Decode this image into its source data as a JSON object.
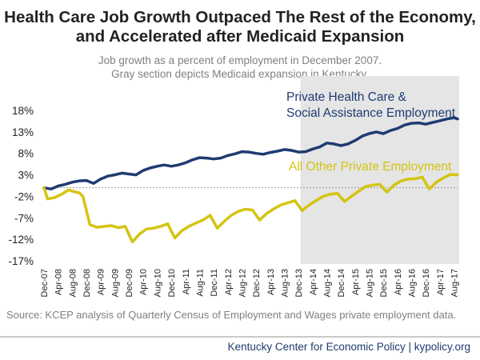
{
  "title": "Health Care Job Growth Outpaced The Rest of the Economy, and Accelerated after Medicaid Expansion",
  "subtitle_line1": "Job growth as a percent of employment in December 2007.",
  "subtitle_line2": "Gray section depicts Medicaid expansion in Kentucky.",
  "source": "Source: KCEP analysis of Quarterly Census of Employment and Wages private employment data.",
  "credit": "Kentucky Center for Economic Policy | kypolicy.org",
  "colors": {
    "health": "#1f3b72",
    "other": "#d4c411",
    "shade": "#e5e5e5",
    "zero_line": "#9a9a9a"
  },
  "chart_data": {
    "type": "line",
    "x_start": "Dec-07",
    "x_end": "Sep-17",
    "x_tick_labels": [
      "Dec-07",
      "Apr-08",
      "Aug-08",
      "Dec-08",
      "Apr-09",
      "Aug-09",
      "Dec-09",
      "Apr-10",
      "Aug-10",
      "Dec-10",
      "Apr-11",
      "Aug-11",
      "Dec-11",
      "Apr-12",
      "Aug-12",
      "Dec-12",
      "Apr-13",
      "Aug-13",
      "Dec-13",
      "Apr-14",
      "Aug-14",
      "Dec-14",
      "Apr-15",
      "Aug-15",
      "Dec-15",
      "Apr-16",
      "Aug-16",
      "Dec-16",
      "Apr-17",
      "Aug-17"
    ],
    "y_tick_labels": [
      "18%",
      "13%",
      "8%",
      "3%",
      "-2%",
      "-7%",
      "-12%",
      "-17%"
    ],
    "ylim": [
      -17,
      18
    ],
    "unit": "%",
    "reference_line": 0,
    "shaded_region": {
      "from": "Jan-14",
      "to": "Sep-17"
    },
    "series": [
      {
        "name_line1": "Private Health Care &",
        "name_line2": "Social Assistance Employment",
        "points": [
          [
            "Dec-07",
            0.0
          ],
          [
            "Feb-08",
            -0.3
          ],
          [
            "Apr-08",
            0.4
          ],
          [
            "Jun-08",
            0.8
          ],
          [
            "Aug-08",
            1.3
          ],
          [
            "Oct-08",
            1.6
          ],
          [
            "Dec-08",
            1.7
          ],
          [
            "Feb-09",
            1.0
          ],
          [
            "Apr-09",
            2.0
          ],
          [
            "Jun-09",
            2.7
          ],
          [
            "Aug-09",
            3.0
          ],
          [
            "Oct-09",
            3.4
          ],
          [
            "Dec-09",
            3.2
          ],
          [
            "Feb-10",
            3.0
          ],
          [
            "Apr-10",
            4.0
          ],
          [
            "Jun-10",
            4.6
          ],
          [
            "Aug-10",
            5.0
          ],
          [
            "Oct-10",
            5.3
          ],
          [
            "Dec-10",
            5.0
          ],
          [
            "Feb-11",
            5.3
          ],
          [
            "Apr-11",
            5.8
          ],
          [
            "Jun-11",
            6.5
          ],
          [
            "Aug-11",
            7.0
          ],
          [
            "Oct-11",
            6.9
          ],
          [
            "Dec-11",
            6.7
          ],
          [
            "Feb-12",
            6.9
          ],
          [
            "Apr-12",
            7.5
          ],
          [
            "Jun-12",
            7.9
          ],
          [
            "Aug-12",
            8.4
          ],
          [
            "Oct-12",
            8.3
          ],
          [
            "Dec-12",
            8.0
          ],
          [
            "Feb-13",
            7.8
          ],
          [
            "Apr-13",
            8.2
          ],
          [
            "Jun-13",
            8.5
          ],
          [
            "Aug-13",
            8.9
          ],
          [
            "Oct-13",
            8.7
          ],
          [
            "Dec-13",
            8.3
          ],
          [
            "Feb-14",
            8.4
          ],
          [
            "Apr-14",
            9.0
          ],
          [
            "Jun-14",
            9.5
          ],
          [
            "Aug-14",
            10.4
          ],
          [
            "Oct-14",
            10.2
          ],
          [
            "Dec-14",
            9.8
          ],
          [
            "Feb-15",
            10.2
          ],
          [
            "Apr-15",
            11.0
          ],
          [
            "Jun-15",
            12.0
          ],
          [
            "Aug-15",
            12.6
          ],
          [
            "Oct-15",
            13.0
          ],
          [
            "Dec-15",
            12.6
          ],
          [
            "Feb-16",
            13.3
          ],
          [
            "Apr-16",
            13.8
          ],
          [
            "Jun-16",
            14.6
          ],
          [
            "Aug-16",
            15.0
          ],
          [
            "Oct-16",
            15.1
          ],
          [
            "Dec-16",
            14.8
          ],
          [
            "Feb-17",
            15.2
          ],
          [
            "Apr-17",
            15.6
          ],
          [
            "Jun-17",
            16.0
          ],
          [
            "Aug-17",
            16.3
          ],
          [
            "Sep-17",
            16.0
          ]
        ]
      },
      {
        "name": "All Other Private Employment",
        "points": [
          [
            "Dec-07",
            0.0
          ],
          [
            "Jan-08",
            -2.6
          ],
          [
            "Mar-08",
            -2.3
          ],
          [
            "May-08",
            -1.5
          ],
          [
            "Jul-08",
            -0.5
          ],
          [
            "Aug-08",
            -0.8
          ],
          [
            "Oct-08",
            -1.2
          ],
          [
            "Nov-08",
            -2.0
          ],
          [
            "Jan-09",
            -8.6
          ],
          [
            "Mar-09",
            -9.2
          ],
          [
            "May-09",
            -9.0
          ],
          [
            "Jul-09",
            -8.8
          ],
          [
            "Sep-09",
            -9.3
          ],
          [
            "Nov-09",
            -9.0
          ],
          [
            "Jan-10",
            -12.6
          ],
          [
            "Mar-10",
            -10.8
          ],
          [
            "May-10",
            -9.6
          ],
          [
            "Jul-10",
            -9.4
          ],
          [
            "Sep-10",
            -9.0
          ],
          [
            "Nov-10",
            -8.4
          ],
          [
            "Jan-11",
            -11.7
          ],
          [
            "Mar-11",
            -10.0
          ],
          [
            "May-11",
            -9.0
          ],
          [
            "Jul-11",
            -8.2
          ],
          [
            "Sep-11",
            -7.5
          ],
          [
            "Nov-11",
            -6.4
          ],
          [
            "Jan-12",
            -9.4
          ],
          [
            "Mar-12",
            -7.8
          ],
          [
            "May-12",
            -6.4
          ],
          [
            "Jul-12",
            -5.5
          ],
          [
            "Sep-12",
            -5.0
          ],
          [
            "Nov-12",
            -5.2
          ],
          [
            "Jan-13",
            -7.5
          ],
          [
            "Mar-13",
            -6.0
          ],
          [
            "May-13",
            -4.9
          ],
          [
            "Jul-13",
            -4.0
          ],
          [
            "Sep-13",
            -3.5
          ],
          [
            "Nov-13",
            -3.0
          ],
          [
            "Jan-14",
            -5.3
          ],
          [
            "Mar-14",
            -4.0
          ],
          [
            "May-14",
            -3.0
          ],
          [
            "Jul-14",
            -2.0
          ],
          [
            "Sep-14",
            -1.5
          ],
          [
            "Nov-14",
            -1.3
          ],
          [
            "Jan-15",
            -3.2
          ],
          [
            "Mar-15",
            -2.0
          ],
          [
            "May-15",
            -0.8
          ],
          [
            "Jul-15",
            0.3
          ],
          [
            "Sep-15",
            0.6
          ],
          [
            "Nov-15",
            0.8
          ],
          [
            "Jan-16",
            -1.0
          ],
          [
            "Mar-16",
            0.6
          ],
          [
            "May-16",
            1.6
          ],
          [
            "Jul-16",
            2.0
          ],
          [
            "Sep-16",
            2.1
          ],
          [
            "Nov-16",
            2.5
          ],
          [
            "Jan-17",
            -0.3
          ],
          [
            "Mar-17",
            1.3
          ],
          [
            "May-17",
            2.3
          ],
          [
            "Jul-17",
            3.1
          ],
          [
            "Sep-17",
            3.0
          ]
        ]
      }
    ]
  }
}
